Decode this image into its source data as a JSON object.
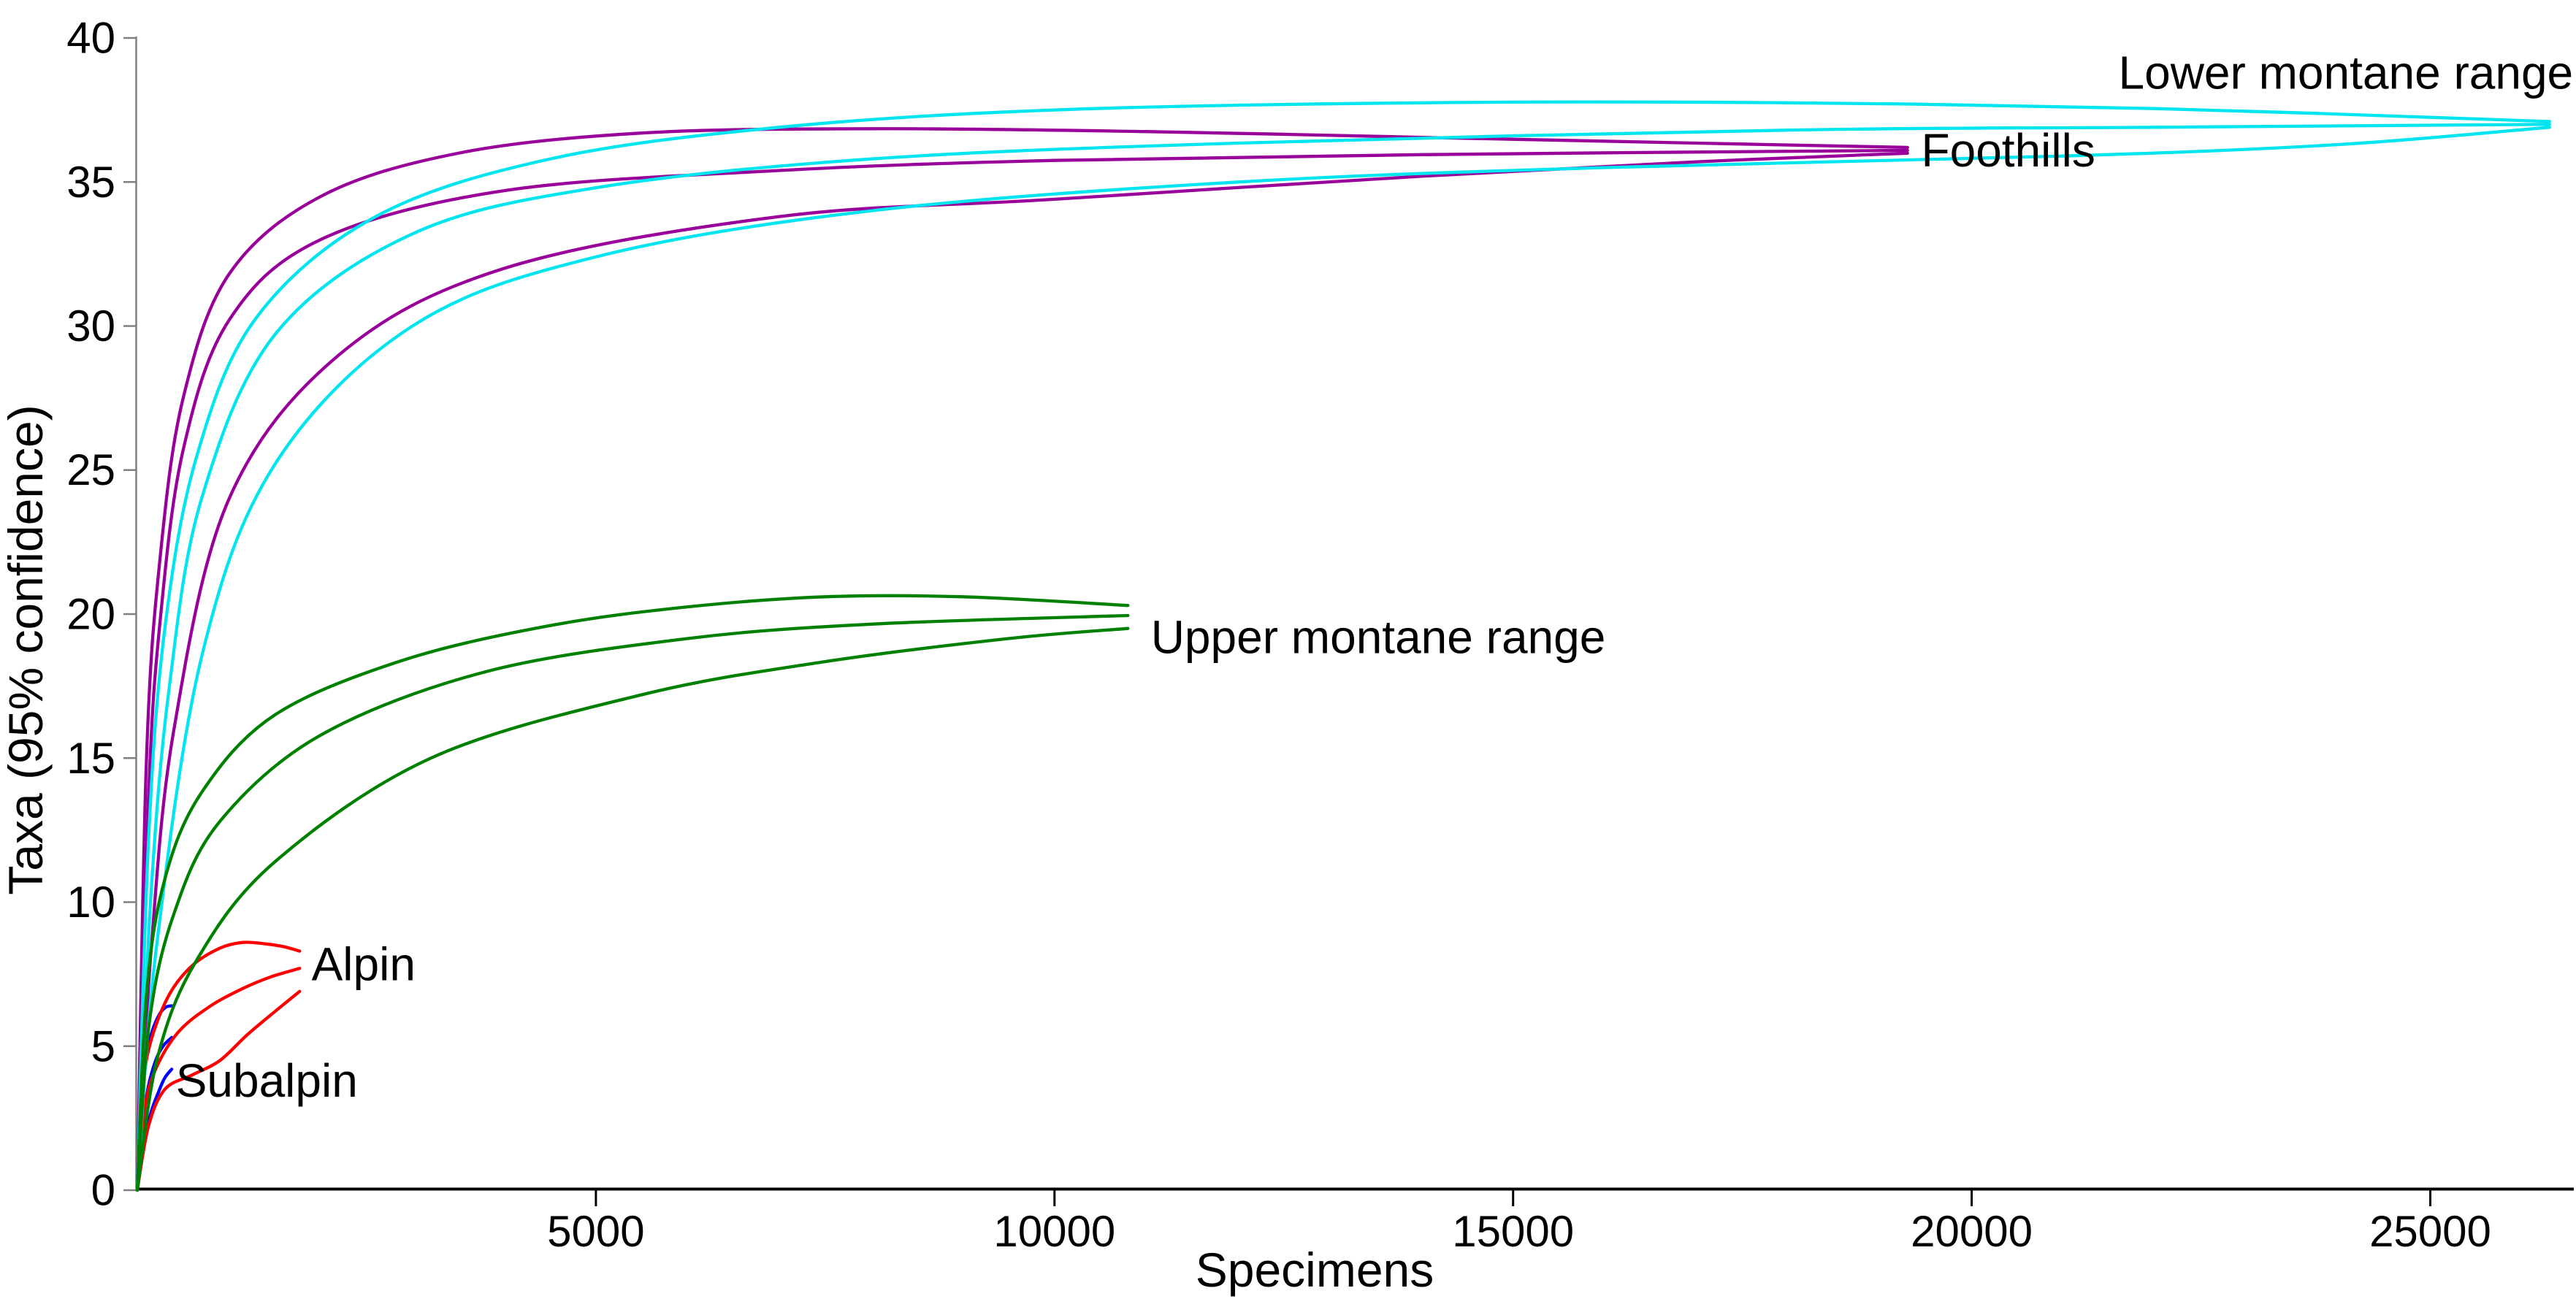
{
  "figure": {
    "background": "#FFFFFF",
    "text_color": "#000000",
    "y_axis_color": "#808080",
    "x_axis_color": "#000000"
  },
  "chart_data": {
    "type": "line",
    "title": "",
    "xlabel": "Specimens",
    "ylabel": "Taxa (95% confidence)",
    "xlim": [
      0,
      26550
    ],
    "ylim": [
      0,
      40
    ],
    "x_ticks": [
      5000,
      10000,
      15000,
      20000,
      25000
    ],
    "y_ticks": [
      0,
      5,
      10,
      15,
      20,
      25,
      30,
      35,
      40
    ],
    "grid": false,
    "legend_position": "inline-curve-labels",
    "description": "Individual rarefaction curves with 95% confidence envelopes (lower CI, mean, upper CI) for five elevation zones",
    "series": [
      {
        "name": "Subalpin",
        "color": "#0000FF",
        "label_anchor": [
          420,
          3.8
        ],
        "n_max": 375,
        "curves": {
          "upper": [
            [
              0,
              0
            ],
            [
              40,
              2.8
            ],
            [
              90,
              4.6
            ],
            [
              160,
              5.5
            ],
            [
              240,
              6.1
            ],
            [
              310,
              6.35
            ],
            [
              375,
              6.4
            ]
          ],
          "mean": [
            [
              0,
              0
            ],
            [
              50,
              2.2
            ],
            [
              120,
              3.6
            ],
            [
              200,
              4.5
            ],
            [
              280,
              5.0
            ],
            [
              375,
              5.3
            ]
          ],
          "lower": [
            [
              0,
              0
            ],
            [
              70,
              1.6
            ],
            [
              150,
              2.7
            ],
            [
              230,
              3.4
            ],
            [
              300,
              3.9
            ],
            [
              375,
              4.2
            ]
          ]
        }
      },
      {
        "name": "Alpin",
        "color": "#FF0000",
        "label_anchor": [
          1900,
          7.85
        ],
        "n_max": 1770,
        "curves": {
          "upper": [
            [
              0,
              0
            ],
            [
              60,
              3.5
            ],
            [
              150,
              5.2
            ],
            [
              350,
              6.8
            ],
            [
              600,
              7.8
            ],
            [
              900,
              8.4
            ],
            [
              1150,
              8.6
            ],
            [
              1400,
              8.55
            ],
            [
              1600,
              8.45
            ],
            [
              1770,
              8.3
            ]
          ],
          "mean": [
            [
              0,
              0
            ],
            [
              80,
              2.8
            ],
            [
              200,
              4.2
            ],
            [
              450,
              5.5
            ],
            [
              800,
              6.4
            ],
            [
              1150,
              7.0
            ],
            [
              1450,
              7.4
            ],
            [
              1770,
              7.7
            ]
          ],
          "lower": [
            [
              0,
              0
            ],
            [
              120,
              2.2
            ],
            [
              300,
              3.5
            ],
            [
              600,
              4.0
            ],
            [
              900,
              4.5
            ],
            [
              1200,
              5.4
            ],
            [
              1500,
              6.2
            ],
            [
              1770,
              6.9
            ]
          ]
        }
      },
      {
        "name": "Foothills",
        "color": "#990099",
        "label_anchor": [
          19450,
          36.1
        ],
        "n_max": 19300,
        "curves": {
          "upper": [
            [
              0,
              0
            ],
            [
              100,
              15
            ],
            [
              250,
              22
            ],
            [
              500,
              27.5
            ],
            [
              1000,
              31.8
            ],
            [
              2000,
              34.5
            ],
            [
              3500,
              36.0
            ],
            [
              5500,
              36.7
            ],
            [
              8000,
              36.85
            ],
            [
              11000,
              36.75
            ],
            [
              14000,
              36.55
            ],
            [
              17000,
              36.35
            ],
            [
              19300,
              36.2
            ]
          ],
          "mean": [
            [
              0,
              0
            ],
            [
              120,
              13.5
            ],
            [
              250,
              19.8
            ],
            [
              500,
              25.7
            ],
            [
              1000,
              30.2
            ],
            [
              2000,
              33.0
            ],
            [
              4000,
              34.7
            ],
            [
              7000,
              35.4
            ],
            [
              10000,
              35.75
            ],
            [
              14000,
              35.95
            ],
            [
              19300,
              36.1
            ]
          ],
          "lower": [
            [
              0,
              0
            ],
            [
              150,
              8.3
            ],
            [
              400,
              16
            ],
            [
              1000,
              24
            ],
            [
              2200,
              29
            ],
            [
              4000,
              32
            ],
            [
              7000,
              33.8
            ],
            [
              10000,
              34.4
            ],
            [
              14000,
              35.2
            ],
            [
              17000,
              35.7
            ],
            [
              19300,
              36.0
            ]
          ]
        }
      },
      {
        "name": "Lower montane range",
        "color": "#00E5EE",
        "label_anchor": [
          21600,
          38.8
        ],
        "n_max": 26300,
        "curves": {
          "upper": [
            [
              0,
              0
            ],
            [
              120,
              12
            ],
            [
              300,
              19.5
            ],
            [
              650,
              25.5
            ],
            [
              1300,
              30.3
            ],
            [
              2600,
              33.8
            ],
            [
              4500,
              35.8
            ],
            [
              7000,
              36.9
            ],
            [
              10000,
              37.5
            ],
            [
              14000,
              37.75
            ],
            [
              18000,
              37.75
            ],
            [
              22000,
              37.55
            ],
            [
              26300,
              37.1
            ]
          ],
          "mean": [
            [
              0,
              0
            ],
            [
              150,
              10.3
            ],
            [
              350,
              17.5
            ],
            [
              700,
              24
            ],
            [
              1500,
              29.7
            ],
            [
              3000,
              33.2
            ],
            [
              5000,
              34.8
            ],
            [
              8000,
              35.8
            ],
            [
              12000,
              36.35
            ],
            [
              18000,
              36.8
            ],
            [
              22000,
              36.9
            ],
            [
              26300,
              37.0
            ]
          ],
          "lower": [
            [
              0,
              0
            ],
            [
              200,
              8.2
            ],
            [
              700,
              18.5
            ],
            [
              1500,
              25.2
            ],
            [
              3000,
              30
            ],
            [
              5000,
              32.4
            ],
            [
              8000,
              34.0
            ],
            [
              12000,
              35.0
            ],
            [
              16000,
              35.5
            ],
            [
              21000,
              35.9
            ],
            [
              24000,
              36.3
            ],
            [
              26300,
              36.9
            ]
          ]
        }
      },
      {
        "name": "Upper montane range",
        "color": "#008000",
        "label_anchor": [
          11050,
          19.2
        ],
        "n_max": 10800,
        "curves": {
          "upper": [
            [
              0,
              0
            ],
            [
              100,
              6.8
            ],
            [
              300,
              10.8
            ],
            [
              700,
              13.8
            ],
            [
              1500,
              16.5
            ],
            [
              2900,
              18.4
            ],
            [
              4500,
              19.6
            ],
            [
              6000,
              20.25
            ],
            [
              7500,
              20.6
            ],
            [
              9000,
              20.6
            ],
            [
              10800,
              20.3
            ]
          ],
          "mean": [
            [
              0,
              0
            ],
            [
              130,
              5.8
            ],
            [
              400,
              9.6
            ],
            [
              900,
              12.8
            ],
            [
              2000,
              15.8
            ],
            [
              3800,
              18.0
            ],
            [
              6000,
              19.15
            ],
            [
              8000,
              19.65
            ],
            [
              10800,
              19.95
            ]
          ],
          "lower": [
            [
              0,
              0
            ],
            [
              220,
              4.6
            ],
            [
              650,
              8.0
            ],
            [
              1500,
              11.4
            ],
            [
              3200,
              15.0
            ],
            [
              5500,
              17.2
            ],
            [
              7500,
              18.35
            ],
            [
              9500,
              19.15
            ],
            [
              10800,
              19.5
            ]
          ]
        }
      }
    ]
  }
}
